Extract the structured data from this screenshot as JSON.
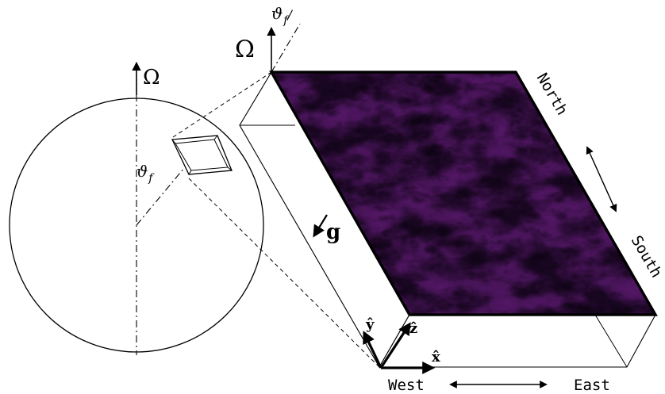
{
  "labels": {
    "omega_globe": "Ω",
    "omega_box": "Ω",
    "theta_globe": "ϑ",
    "theta_globe_sub": "f",
    "theta_box": "ϑ",
    "theta_box_sub": "f",
    "gravity": "g",
    "x_hat": "x̂",
    "y_hat": "ŷ",
    "z_hat": "ẑ",
    "north": "North",
    "south": "South",
    "west": "West",
    "east": "East"
  },
  "colors": {
    "line": "#000000",
    "field_dark": "#2a0a4a",
    "field_mid": "#7a1f6e",
    "field_warm": "#c0395a",
    "field_hot": "#f5a532"
  }
}
